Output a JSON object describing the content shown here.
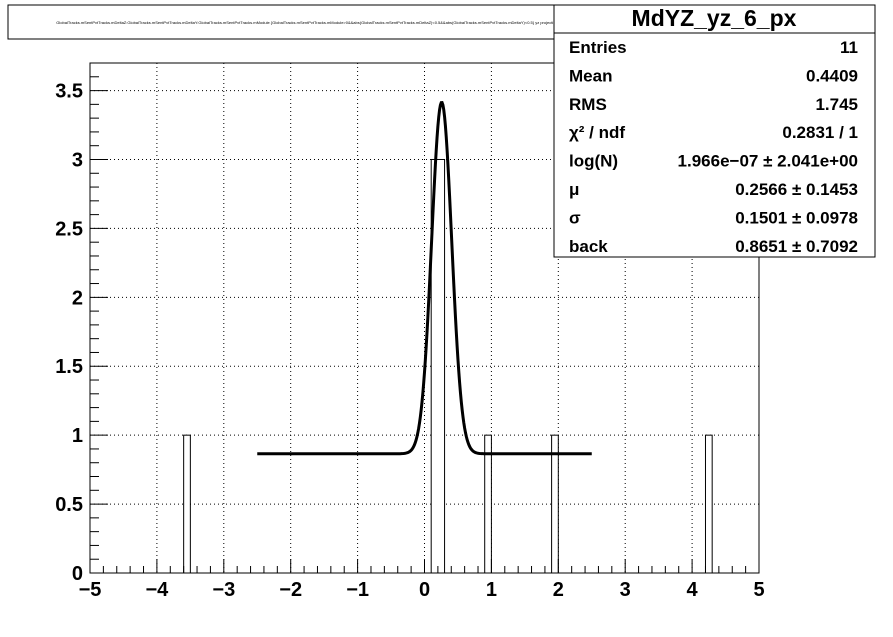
{
  "title_box": {
    "text": "GlobalTracks.mSentPvtTracks.mDeltaZ:GlobalTracks.mSentPvtTracks.mDeltaY:GlobalTracks.mSentPvtTracks.mModule {GlobalTracks.mSentPvtTracks.mModule>0&&abs(GlobalTracks.mSentPvtTracks.mDeltaZ)<0.5&&abs(GlobalTracks.mSentPvtTracks.mDeltaY)<0.5} yz projection"
  },
  "stats": {
    "name": "MdYZ_yz_6_px",
    "rows": [
      {
        "label": "Entries",
        "value": "11"
      },
      {
        "label": "Mean",
        "value": "0.4409"
      },
      {
        "label": "RMS",
        "value": "1.745"
      },
      {
        "label": "χ² / ndf",
        "value": "0.2831 / 1"
      },
      {
        "label": "log(N)",
        "value": "1.966e−07 ± 2.041e+00"
      },
      {
        "label": "μ",
        "value": "0.2566 ± 0.1453"
      },
      {
        "label": "σ",
        "value": "0.1501 ± 0.0978"
      },
      {
        "label": "back",
        "value": "0.8651 ± 0.7092"
      }
    ]
  },
  "chart_data": {
    "type": "bar",
    "xlim": [
      -5,
      5
    ],
    "ylim": [
      0,
      3.7
    ],
    "grid": true,
    "x_ticks": [
      -5,
      -4,
      -3,
      -2,
      -1,
      0,
      1,
      2,
      3,
      4,
      5
    ],
    "x_tick_labels": [
      "−5",
      "−4",
      "−3",
      "−2",
      "−1",
      "0",
      "1",
      "2",
      "3",
      "4",
      "5"
    ],
    "y_ticks": [
      0,
      0.5,
      1,
      1.5,
      2,
      2.5,
      3,
      3.5
    ],
    "y_tick_labels": [
      "0",
      "0.5",
      "1",
      "1.5",
      "2",
      "2.5",
      "3",
      "3.5"
    ],
    "bins": [
      {
        "x0": -3.6,
        "x1": -3.5,
        "count": 1
      },
      {
        "x0": 0.1,
        "x1": 0.3,
        "count": 3
      },
      {
        "x0": 0.9,
        "x1": 1.0,
        "count": 1
      },
      {
        "x0": 1.9,
        "x1": 2.0,
        "count": 1
      },
      {
        "x0": 4.2,
        "x1": 4.3,
        "count": 1
      }
    ],
    "fit": {
      "function": "gaus+pol0",
      "range": [
        -2.5,
        2.5
      ],
      "amplitude": 2.55,
      "mean": 0.2566,
      "sigma": 0.1501,
      "background": 0.8651
    }
  }
}
